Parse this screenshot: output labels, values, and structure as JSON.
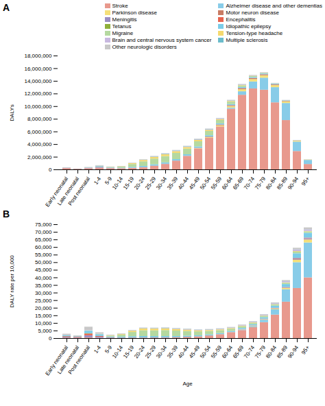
{
  "chart_data": [
    {
      "type": "bar",
      "title": "A",
      "stacked": true,
      "legend": "upper right",
      "categories": [
        "Early neonatal",
        "Late neonatal",
        "Post neonatal",
        "1-4",
        "5-9",
        "10-14",
        "15-19",
        "20-24",
        "25-29",
        "30-34",
        "35-39",
        "40-44",
        "45-49",
        "50-54",
        "55-59",
        "60-64",
        "65-69",
        "70-74",
        "75-79",
        "80-84",
        "85-89",
        "90-94",
        "95+"
      ],
      "ylabel": "DALYs",
      "ylim": [
        0,
        18000000
      ],
      "yticks": [
        0,
        {
          "value": 2000000,
          "label": "2,000,000"
        },
        {
          "value": 4000000,
          "label": "4,000,000"
        },
        {
          "value": 6000000,
          "label": "6,000,000"
        },
        {
          "value": 8000000,
          "label": "8,000,000"
        },
        {
          "value": 10000000,
          "label": "10,000,000"
        },
        {
          "value": 12000000,
          "label": "12,000,000"
        },
        {
          "value": 14000000,
          "label": "14,000,000"
        },
        {
          "value": 16000000,
          "label": "16,000,000"
        },
        {
          "value": 18000000,
          "label": "18,000,000"
        }
      ],
      "series": [
        {
          "name": "Stroke",
          "color": "#e8998d",
          "values": [
            200000,
            70000,
            150000,
            250000,
            180000,
            160000,
            220000,
            320000,
            550000,
            850000,
            1350000,
            2100000,
            3300000,
            5000000,
            6800000,
            9600000,
            11800000,
            12800000,
            12600000,
            10600000,
            7800000,
            2900000,
            850000
          ]
        },
        {
          "name": "Alzheimer disease and other dementias",
          "color": "#88cce8",
          "values": [
            0,
            0,
            0,
            0,
            0,
            0,
            0,
            0,
            0,
            0,
            0,
            0,
            0,
            0,
            0,
            180000,
            550000,
            1100000,
            1900000,
            2400000,
            2700000,
            1500000,
            650000
          ]
        },
        {
          "name": "Parkinson disease",
          "color": "#f5e07a",
          "values": [
            0,
            0,
            0,
            0,
            0,
            0,
            0,
            0,
            0,
            0,
            8000,
            18000,
            45000,
            90000,
            170000,
            230000,
            330000,
            380000,
            380000,
            330000,
            260000,
            140000,
            55000
          ]
        },
        {
          "name": "Motor neuron disease",
          "color": "#c97b63",
          "values": [
            0,
            0,
            0,
            0,
            0,
            0,
            0,
            0,
            0,
            4000,
            8000,
            18000,
            35000,
            65000,
            90000,
            120000,
            150000,
            160000,
            140000,
            95000,
            65000,
            28000,
            9000
          ]
        },
        {
          "name": "Meningitis",
          "color": "#9b8ec4",
          "values": [
            28000,
            18000,
            45000,
            75000,
            28000,
            18000,
            22000,
            28000,
            32000,
            32000,
            28000,
            28000,
            28000,
            28000,
            28000,
            28000,
            28000,
            22000,
            18000,
            14000,
            9000,
            4500,
            1800
          ]
        },
        {
          "name": "Encephalitis",
          "color": "#e8634d",
          "values": [
            18000,
            13000,
            36000,
            55000,
            18000,
            13000,
            18000,
            18000,
            18000,
            18000,
            16000,
            16000,
            16000,
            16000,
            16000,
            16000,
            16000,
            13000,
            11000,
            8000,
            5500,
            2700,
            900
          ]
        },
        {
          "name": "Tetanus",
          "color": "#8faf3a",
          "values": [
            4500,
            4500,
            7000,
            9000,
            2700,
            1800,
            2700,
            2700,
            2700,
            2700,
            2700,
            2700,
            2700,
            2700,
            2700,
            2700,
            1800,
            1350,
            900,
            720,
            450,
            180,
            90
          ]
        },
        {
          "name": "Idiopathic epilepsy",
          "color": "#7bcce8",
          "values": [
            36000,
            13500,
            54000,
            135000,
            72000,
            81000,
            135000,
            180000,
            207000,
            207000,
            207000,
            207000,
            207000,
            198000,
            180000,
            162000,
            153000,
            135000,
            117000,
            90000,
            63000,
            27000,
            9000
          ]
        },
        {
          "name": "Migraine",
          "color": "#b5d9a0",
          "values": [
            0,
            0,
            4500,
            27000,
            72000,
            162000,
            450000,
            720000,
            900000,
            990000,
            990000,
            900000,
            810000,
            675000,
            522000,
            378000,
            252000,
            162000,
            90000,
            54000,
            27000,
            9000,
            2700
          ]
        },
        {
          "name": "Tension-type headache",
          "color": "#f5d96e",
          "values": [
            0,
            0,
            1800,
            9000,
            27000,
            54000,
            135000,
            225000,
            270000,
            288000,
            279000,
            252000,
            216000,
            180000,
            144000,
            108000,
            72000,
            45000,
            27000,
            16200,
            9000,
            3600,
            900
          ]
        },
        {
          "name": "Brain and central nervous system cancer",
          "color": "#c8b8e0",
          "values": [
            4500,
            2700,
            7200,
            18000,
            13500,
            18000,
            27000,
            36000,
            45000,
            54000,
            63000,
            72000,
            81000,
            90000,
            90000,
            81000,
            72000,
            63000,
            49500,
            36000,
            22500,
            9000,
            2700
          ]
        },
        {
          "name": "Multiple sclerosis",
          "color": "#6bbccc",
          "values": [
            0,
            0,
            0,
            900,
            1800,
            4500,
            13500,
            27000,
            40500,
            49500,
            54000,
            54000,
            49500,
            45000,
            37800,
            29700,
            21600,
            14400,
            9000,
            5400,
            2700,
            900,
            270
          ]
        },
        {
          "name": "Other neurologic disorders",
          "color": "#c8c8c8",
          "values": [
            45000,
            18000,
            72000,
            90000,
            45000,
            36000,
            45000,
            54000,
            63000,
            63000,
            63000,
            63000,
            63000,
            63000,
            63000,
            63000,
            58500,
            49500,
            40500,
            31500,
            22500,
            9000,
            3600
          ]
        }
      ]
    },
    {
      "type": "bar",
      "title": "B",
      "stacked": true,
      "categories": [
        "Early neonatal",
        "Late neonatal",
        "Post neonatal",
        "1-4",
        "5-9",
        "10-14",
        "15-19",
        "20-24",
        "25-29",
        "30-34",
        "35-39",
        "40-44",
        "45-49",
        "50-54",
        "55-59",
        "60-64",
        "65-69",
        "70-74",
        "75-79",
        "80-84",
        "85-89",
        "90-94",
        "95+"
      ],
      "xlabel": "Age",
      "ylabel": "DALY rate per 10,000",
      "ylim": [
        0,
        75000
      ],
      "yticks": [
        0,
        {
          "value": 5000,
          "label": "5,000"
        },
        {
          "value": 10000,
          "label": "10,000"
        },
        {
          "value": 15000,
          "label": "15,000"
        },
        {
          "value": 20000,
          "label": "20,000"
        },
        {
          "value": 25000,
          "label": "25,000"
        },
        {
          "value": 30000,
          "label": "30,000"
        },
        {
          "value": 35000,
          "label": "35,000"
        },
        {
          "value": 40000,
          "label": "40,000"
        },
        {
          "value": 45000,
          "label": "45,000"
        },
        {
          "value": 50000,
          "label": "50,000"
        },
        {
          "value": 55000,
          "label": "55,000"
        },
        {
          "value": 60000,
          "label": "60,000"
        },
        {
          "value": 65000,
          "label": "65,000"
        },
        {
          "value": 70000,
          "label": "70,000"
        },
        {
          "value": 75000,
          "label": "75,000"
        }
      ],
      "series": [
        {
          "color": "#e8998d",
          "values": [
            400,
            250,
            500,
            250,
            130,
            110,
            130,
            160,
            220,
            310,
            450,
            700,
            1000,
            1600,
            2400,
            3700,
            5300,
            7200,
            10500,
            15500,
            24000,
            33000,
            40000
          ]
        },
        {
          "color": "#88cce8",
          "values": [
            0,
            0,
            0,
            0,
            0,
            0,
            0,
            0,
            0,
            0,
            0,
            0,
            0,
            0,
            0,
            70,
            260,
            650,
            1600,
            3500,
            8200,
            17000,
            23000
          ]
        },
        {
          "color": "#f5e07a",
          "values": [
            0,
            0,
            0,
            0,
            0,
            0,
            0,
            0,
            0,
            2,
            3,
            6,
            14,
            30,
            60,
            90,
            150,
            220,
            320,
            500,
            800,
            1600,
            1900
          ]
        },
        {
          "color": "#c97b63",
          "values": [
            0,
            0,
            0,
            0,
            0,
            0,
            0,
            0,
            0,
            1,
            3,
            6,
            11,
            21,
            33,
            47,
            68,
            91,
            119,
            138,
            199,
            315,
            320
          ]
        },
        {
          "color": "#9b8ec4",
          "values": [
            500,
            400,
            1400,
            620,
            210,
            140,
            140,
            140,
            140,
            130,
            100,
            95,
            85,
            95,
            100,
            110,
            130,
            130,
            160,
            210,
            280,
            520,
            630
          ]
        },
        {
          "color": "#e8634d",
          "values": [
            330,
            295,
            1100,
            470,
            138,
            101,
            110,
            92,
            83,
            74,
            55,
            55,
            55,
            55,
            55,
            64,
            74,
            83,
            92,
            120,
            166,
            314,
            314
          ]
        },
        {
          "color": "#8faf3a",
          "values": [
            83,
            101,
            221,
            74,
            18,
            9,
            18,
            18,
            9,
            9,
            9,
            9,
            9,
            9,
            9,
            9,
            9,
            9,
            9,
            9,
            18,
            18,
            28
          ]
        },
        {
          "color": "#7bcce8",
          "values": [
            660,
            295,
            1660,
            1170,
            562,
            627,
            838,
            950,
            875,
            820,
            755,
            718,
            663,
            663,
            663,
            644,
            718,
            792,
            1022,
            1363,
            1962,
            3115,
            3161
          ]
        },
        {
          "color": "#b5d9a0",
          "values": [
            0,
            0,
            138,
            230,
            562,
            1253,
            2802,
            3805,
            3805,
            3928,
            3621,
            3127,
            2608,
            2259,
            1926,
            1502,
            1180,
            950,
            783,
            811,
            839,
            1042,
            950
          ]
        },
        {
          "color": "#f5d96e",
          "values": [
            0,
            0,
            55,
            74,
            212,
            415,
            839,
            1189,
            1143,
            1143,
            1023,
            876,
            691,
            599,
            534,
            433,
            341,
            267,
            240,
            249,
            277,
            415,
            314
          ]
        },
        {
          "color": "#c8b8e0",
          "values": [
            83,
            55,
            221,
            157,
            101,
            138,
            166,
            194,
            194,
            212,
            230,
            249,
            258,
            304,
            332,
            323,
            341,
            369,
            433,
            544,
            701,
            1042,
            950
          ]
        },
        {
          "color": "#6bbccc",
          "values": [
            0,
            0,
            0,
            9,
            18,
            37,
            83,
            138,
            175,
            194,
            194,
            184,
            157,
            147,
            138,
            120,
            101,
            83,
            83,
            83,
            83,
            101,
            92
          ]
        },
        {
          "color": "#c8c8c8",
          "values": [
            830,
            396,
            2212,
            784,
            350,
            277,
            277,
            286,
            267,
            249,
            230,
            221,
            203,
            212,
            230,
            249,
            277,
            295,
            350,
            470,
            701,
            1042,
            1272
          ]
        }
      ]
    }
  ]
}
